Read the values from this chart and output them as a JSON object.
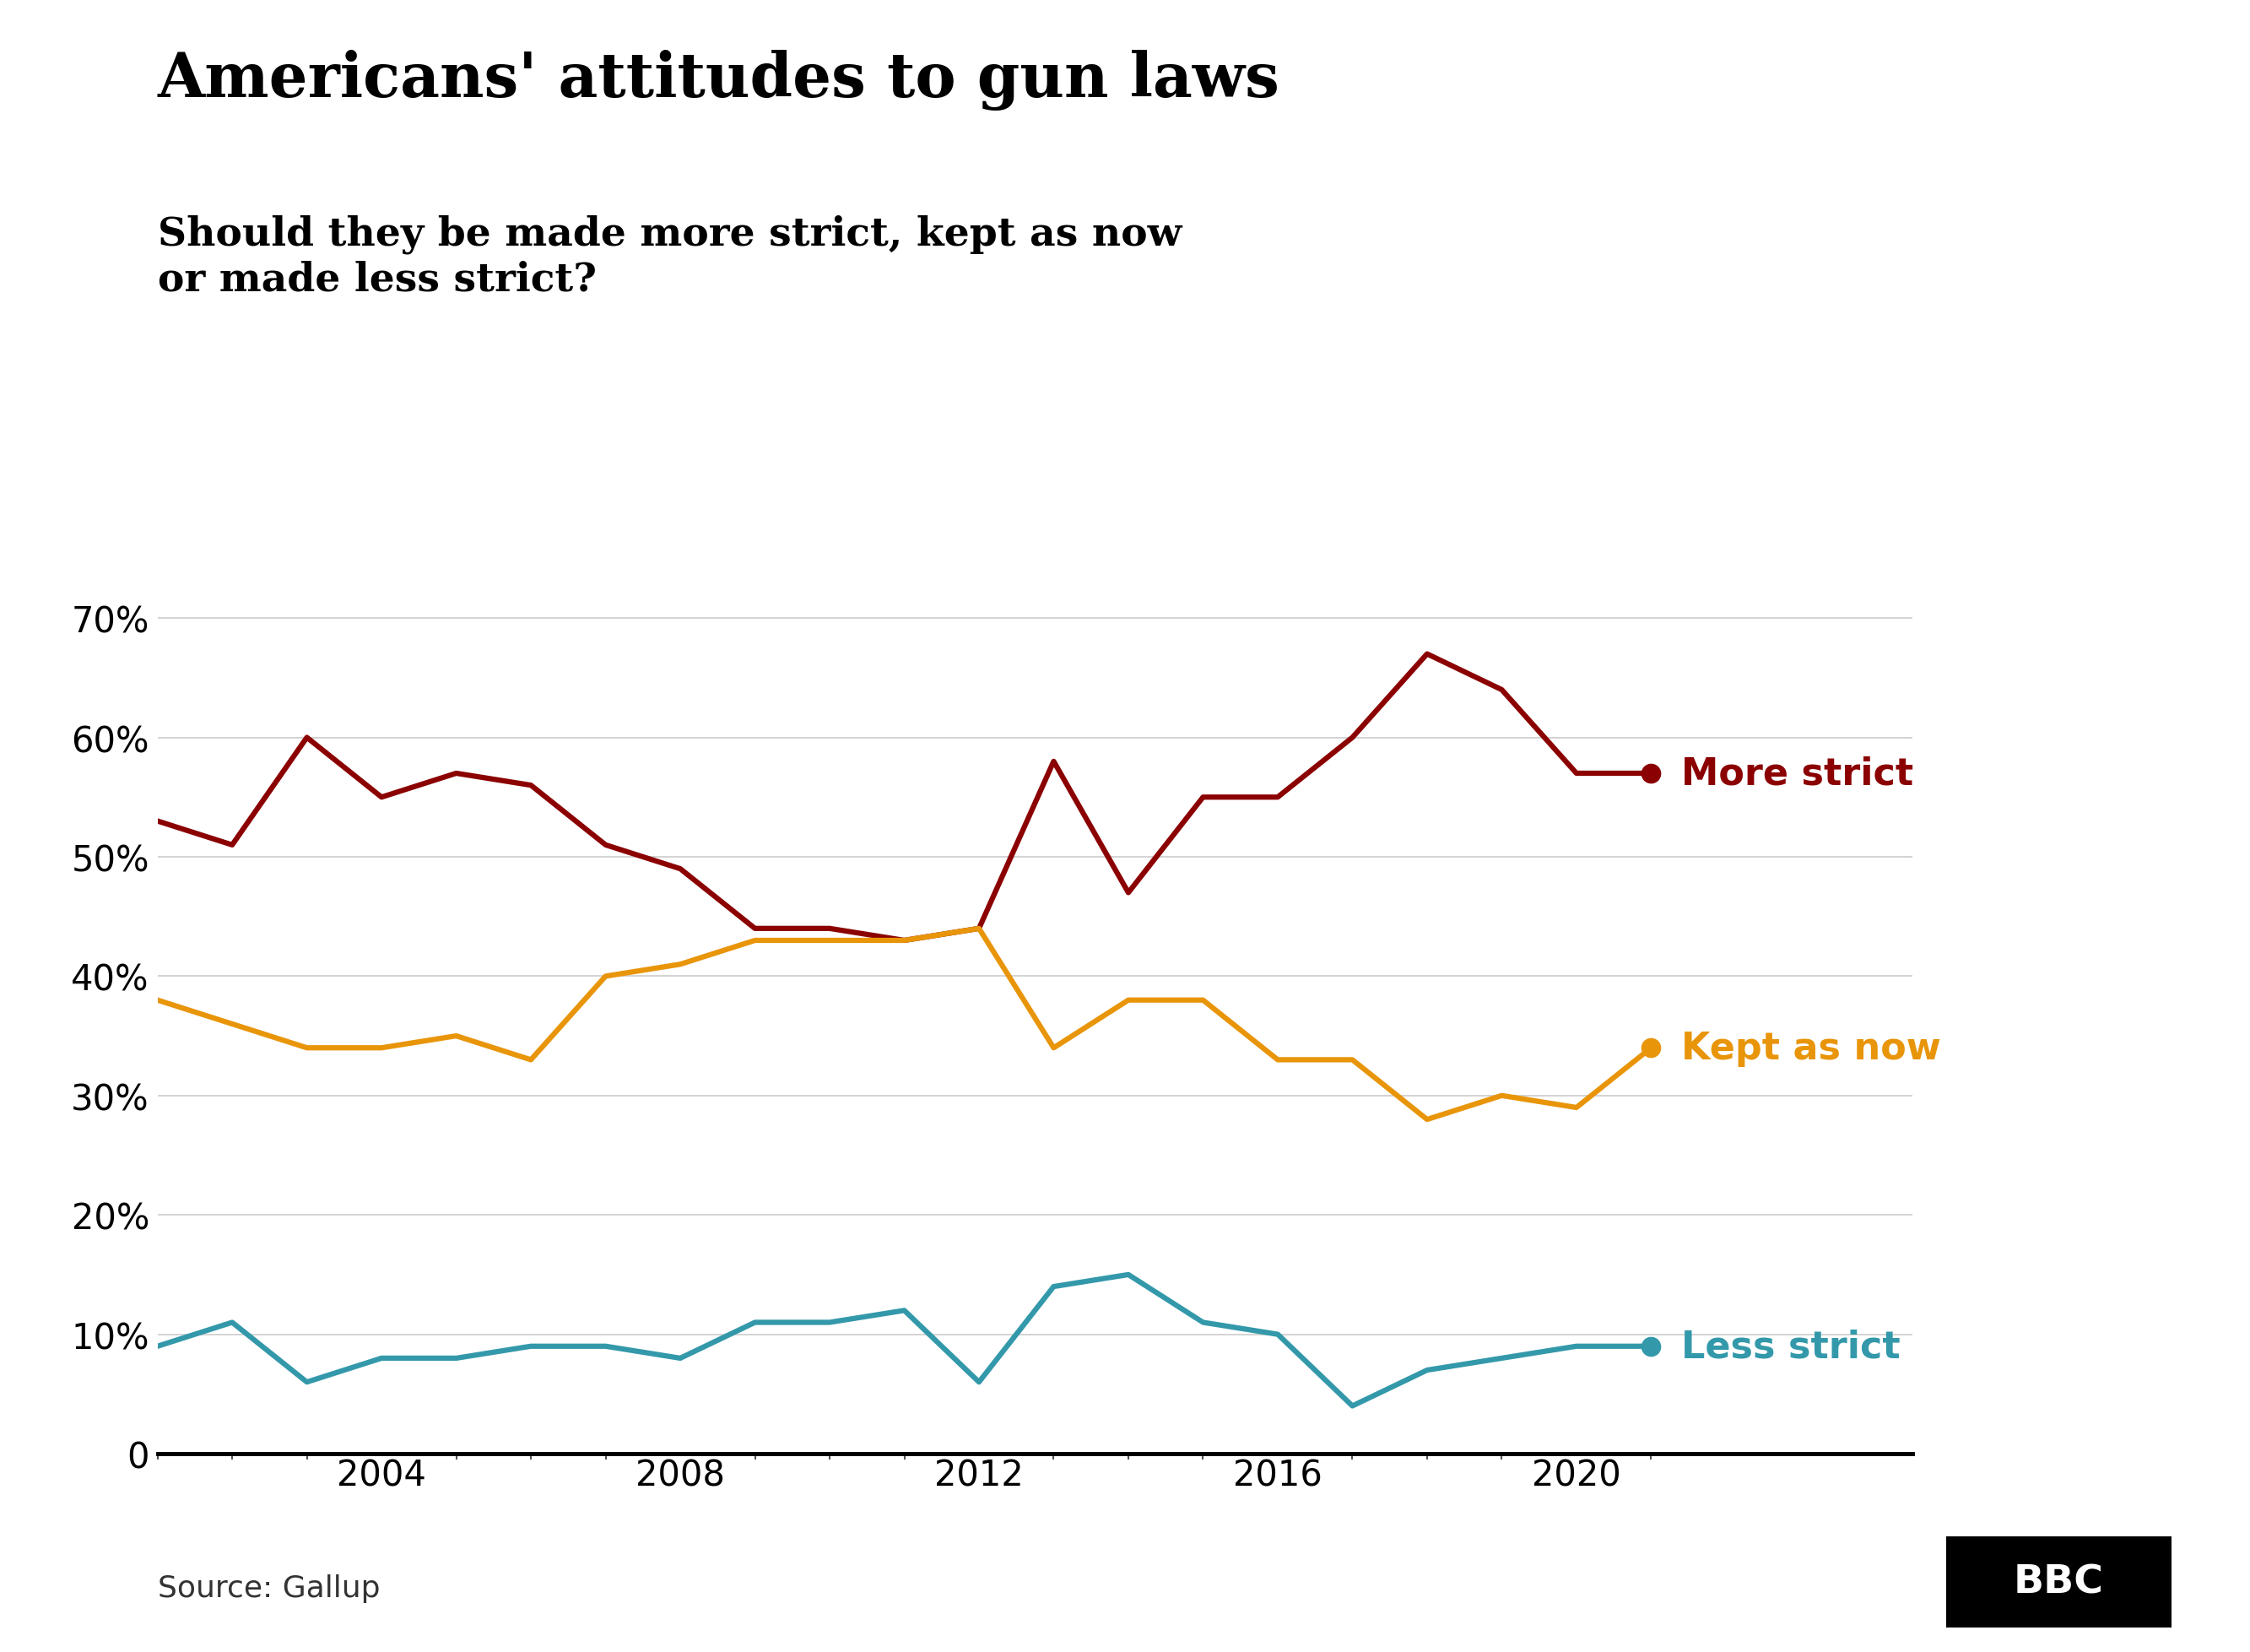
{
  "title": "Americans' attitudes to gun laws",
  "subtitle": "Should they be made more strict, kept as now\nor made less strict?",
  "source": "Source: Gallup",
  "more_strict": {
    "years": [
      2001,
      2002,
      2003,
      2004,
      2005,
      2006,
      2007,
      2008,
      2009,
      2010,
      2011,
      2012,
      2013,
      2014,
      2015,
      2016,
      2017,
      2018,
      2019,
      2020,
      2021
    ],
    "values": [
      53,
      51,
      60,
      55,
      57,
      56,
      51,
      49,
      44,
      44,
      43,
      44,
      58,
      47,
      55,
      55,
      60,
      67,
      64,
      57,
      57
    ]
  },
  "kept_as_now": {
    "years": [
      2001,
      2002,
      2003,
      2004,
      2005,
      2006,
      2007,
      2008,
      2009,
      2010,
      2011,
      2012,
      2013,
      2014,
      2015,
      2016,
      2017,
      2018,
      2019,
      2020,
      2021
    ],
    "values": [
      38,
      36,
      34,
      34,
      35,
      33,
      40,
      41,
      43,
      43,
      43,
      44,
      34,
      38,
      38,
      33,
      33,
      28,
      30,
      29,
      34
    ]
  },
  "less_strict": {
    "years": [
      2001,
      2002,
      2003,
      2004,
      2005,
      2006,
      2007,
      2008,
      2009,
      2010,
      2011,
      2012,
      2013,
      2014,
      2015,
      2016,
      2017,
      2018,
      2019,
      2020,
      2021
    ],
    "values": [
      9,
      11,
      6,
      8,
      8,
      9,
      9,
      8,
      11,
      11,
      12,
      6,
      14,
      15,
      11,
      10,
      4,
      7,
      8,
      9,
      9
    ]
  },
  "more_strict_color": "#8B0000",
  "kept_as_now_color": "#E8950A",
  "less_strict_color": "#3399AA",
  "line_width": 4.5,
  "ylim": [
    0,
    72
  ],
  "yticks": [
    0,
    10,
    20,
    30,
    40,
    50,
    60,
    70
  ],
  "xlim_left": 2001,
  "xlim_right": 2024.5,
  "xticks": [
    2004,
    2008,
    2012,
    2016,
    2020
  ],
  "background_color": "#ffffff",
  "grid_color": "#cccccc",
  "title_fontsize": 52,
  "subtitle_fontsize": 34,
  "label_fontsize": 32,
  "tick_fontsize": 30,
  "source_fontsize": 26,
  "bbc_fontsize": 34
}
